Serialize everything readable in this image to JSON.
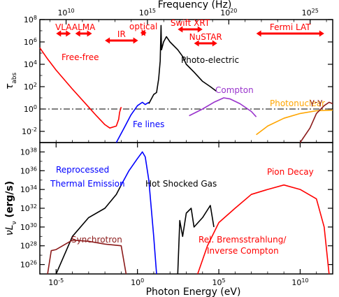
{
  "chart_data": [
    {
      "type": "line",
      "panel": "top",
      "xlabel_top": "Frequency (Hz)",
      "ylabel": "τ_abs",
      "x_log": true,
      "y_log": true,
      "xlim_eV": [
        1e-06,
        1000000000000.0
      ],
      "ylim": [
        0.001,
        100000000.0
      ],
      "top_ticks": [
        {
          "freq_exp": 10,
          "label": "10^10",
          "x_eV": 4.1e-05
        },
        {
          "freq_exp": 15,
          "label": "10^15",
          "x_eV": 4.1
        },
        {
          "freq_exp": 20,
          "label": "10^20",
          "x_eV": 410000.0
        },
        {
          "freq_exp": 25,
          "label": "10^25",
          "x_eV": 41000000000.0
        }
      ],
      "yticks": [
        {
          "label": "10^-2",
          "value": 0.01
        },
        {
          "label": "10^0",
          "value": 1
        },
        {
          "label": "10^2",
          "value": 100
        },
        {
          "label": "10^4",
          "value": 10000.0
        },
        {
          "label": "10^6",
          "value": 1000000.0
        },
        {
          "label": "10^8",
          "value": 100000000.0
        }
      ],
      "reference_line": {
        "value": 1,
        "style": "dash-dot"
      },
      "bands": [
        {
          "name": "VLA",
          "x_eV": [
            1e-05,
            8e-05
          ]
        },
        {
          "name": "ALMA",
          "x_eV": [
            0.00015,
            0.0016
          ]
        },
        {
          "name": "IR",
          "x_eV": [
            0.01,
            1.1
          ]
        },
        {
          "name": "optical",
          "x_eV": [
            1.5,
            3.6
          ]
        },
        {
          "name": "Swift XRT",
          "x_eV": [
            300,
            10000.0
          ]
        },
        {
          "name": "NuSTAR",
          "x_eV": [
            3000,
            80000.0
          ]
        },
        {
          "name": "Fermi LAT",
          "x_eV": [
            20000000.0,
            300000000000.0
          ]
        }
      ],
      "series": [
        {
          "name": "Free-free",
          "color": "#ff0000",
          "points": [
            [
              1e-06,
              300000.0
            ],
            [
              3e-06,
              30000.0
            ],
            [
              1e-05,
              3000
            ],
            [
              0.0001,
              60
            ],
            [
              0.001,
              1.5
            ],
            [
              0.003,
              0.25
            ],
            [
              0.01,
              0.04
            ],
            [
              0.02,
              0.02
            ],
            [
              0.05,
              0.03
            ],
            [
              0.07,
              0.12
            ],
            [
              0.08,
              0.5
            ],
            [
              0.1,
              1.5
            ]
          ]
        },
        {
          "name": "Fe lines",
          "color": "#0000ff",
          "points": [
            [
              0.05,
              0.001
            ],
            [
              0.15,
              0.02
            ],
            [
              0.4,
              0.3
            ],
            [
              1,
              2
            ],
            [
              2,
              4
            ],
            [
              3,
              2.5
            ],
            [
              5,
              4
            ]
          ]
        },
        {
          "name": "Photo-electric",
          "color": "#000000",
          "points": [
            [
              5,
              3
            ],
            [
              10,
              20
            ],
            [
              15,
              30
            ],
            [
              20,
              500
            ],
            [
              25,
              20000.0
            ],
            [
              28,
              30000000.0
            ],
            [
              30,
              200000.0
            ],
            [
              40,
              1000000.0
            ],
            [
              60,
              3000000.0
            ],
            [
              100,
              1000000.0
            ],
            [
              300,
              200000.0
            ],
            [
              600,
              50000.0
            ],
            [
              1000,
              10000.0
            ],
            [
              3000,
              2000
            ],
            [
              10000.0,
              300
            ],
            [
              30000.0,
              100
            ],
            [
              70000.0,
              40
            ]
          ]
        },
        {
          "name": "Compton",
          "color": "#9933cc",
          "points": [
            [
              1500,
              0.25
            ],
            [
              10000.0,
              1
            ],
            [
              50000.0,
              4
            ],
            [
              200000.0,
              10
            ],
            [
              500000.0,
              8
            ],
            [
              2000000.0,
              3
            ],
            [
              10000000.0,
              0.6
            ],
            [
              20000000.0,
              0.2
            ]
          ]
        },
        {
          "name": "Photonuclear",
          "color": "#ffa500",
          "points": [
            [
              20000000.0,
              0.005
            ],
            [
              100000000.0,
              0.03
            ],
            [
              1000000000.0,
              0.15
            ],
            [
              10000000000.0,
              0.4
            ],
            [
              100000000000.0,
              0.7
            ],
            [
              1000000000000.0,
              0.8
            ]
          ]
        },
        {
          "name": "γ-γ",
          "color": "#8b1a1a",
          "points": [
            [
              10000000000.0,
              0.001
            ],
            [
              40000000000.0,
              0.02
            ],
            [
              100000000000.0,
              0.4
            ],
            [
              300000000000.0,
              2
            ],
            [
              600000000000.0,
              4
            ],
            [
              1000000000000.0,
              3
            ]
          ]
        }
      ]
    },
    {
      "type": "line",
      "panel": "bottom",
      "xlabel": "Photon Energy (eV)",
      "ylabel": "νL_ν (erg/s)",
      "x_log": true,
      "y_log": true,
      "xlim_eV": [
        1e-06,
        1000000000000.0
      ],
      "ylim": [
        1e+25,
        1e+39
      ],
      "xticks": [
        {
          "label": "10^-5",
          "value": 1e-05
        },
        {
          "label": "10^0",
          "value": 1
        },
        {
          "label": "10^5",
          "value": 100000.0
        },
        {
          "label": "10^10",
          "value": 10000000000.0
        }
      ],
      "yticks": [
        {
          "label": "10^26",
          "value": 1e+26
        },
        {
          "label": "10^28",
          "value": 1e+28
        },
        {
          "label": "10^30",
          "value": 1e+30
        },
        {
          "label": "10^32",
          "value": 1e+32
        },
        {
          "label": "10^34",
          "value": 1e+34
        },
        {
          "label": "10^36",
          "value": 1e+36
        },
        {
          "label": "10^38",
          "value": 1e+38
        }
      ],
      "annotations": [
        {
          "text": "Reprocessed",
          "color": "#0000ff"
        },
        {
          "text": "Thermal Emission",
          "color": "#0000ff"
        },
        {
          "text": "Hot Shocked Gas",
          "color": "#000000"
        },
        {
          "text": "Pion Decay",
          "color": "#ff0000"
        },
        {
          "text": "Synchrotron",
          "color": "#8b1a1a"
        },
        {
          "text": "Rel. Bremsstrahlung/",
          "color": "#ff0000"
        },
        {
          "text": "Inverse Compton",
          "color": "#ff0000"
        }
      ],
      "series": [
        {
          "name": "Reprocessed Thermal Emission",
          "color": "#0000ff",
          "points": [
            [
              0.1,
              3e+34
            ],
            [
              0.3,
              1e+36
            ],
            [
              1,
              2e+37
            ],
            [
              2,
              1e+38
            ],
            [
              3,
              3e+37
            ],
            [
              5,
              1e+35
            ],
            [
              10,
              1e+29
            ],
            [
              15,
              1e+25
            ]
          ]
        },
        {
          "name": "Hot Shocked Gas",
          "color": "#000000",
          "points": [
            [
              1e-05,
              1e+25
            ],
            [
              0.0001,
              1e+29
            ],
            [
              0.001,
              1e+31
            ],
            [
              0.01,
              1e+32
            ],
            [
              0.05,
              3e+33
            ],
            [
              0.1,
              3e+34
            ]
          ]
        },
        {
          "name": "Hot Shocked Gas (X-ray)",
          "color": "#000000",
          "points": [
            [
              300,
              1e+25
            ],
            [
              400,
              5e+30
            ],
            [
              600,
              1e+29
            ],
            [
              1000,
              3e+31
            ],
            [
              2000,
              1e+32
            ],
            [
              3000,
              1e+30
            ],
            [
              10000.0,
              1e+31
            ],
            [
              30000.0,
              2e+32
            ],
            [
              50000.0,
              1e+30
            ]
          ]
        },
        {
          "name": "Synchrotron",
          "color": "#8b1a1a",
          "points": [
            [
              3e-06,
              1e+25
            ],
            [
              5e-06,
              3e+27
            ],
            [
              1e-05,
              4e+27
            ],
            [
              0.0001,
              4e+28
            ],
            [
              0.001,
              3e+28
            ],
            [
              0.01,
              1.5e+28
            ],
            [
              0.1,
              1e+28
            ],
            [
              0.2,
              1e+25
            ]
          ]
        },
        {
          "name": "Rel. Bremsstrahlung/ Inverse Compton",
          "color": "#ff0000",
          "points": [
            [
              5000.0,
              1e+25
            ],
            [
              20000.0,
              1e+28
            ],
            [
              100000.0,
              3e+30
            ],
            [
              1000000.0,
              1e+32
            ],
            [
              10000000.0,
              3e+33
            ],
            [
              100000000.0,
              1e+34
            ],
            [
              1000000000.0,
              3e+34
            ],
            [
              10000000000.0,
              1e+34
            ],
            [
              100000000000.0,
              1e+33
            ],
            [
              300000000000.0,
              1e+30
            ],
            [
              600000000000.0,
              1e+25
            ]
          ]
        }
      ]
    }
  ]
}
